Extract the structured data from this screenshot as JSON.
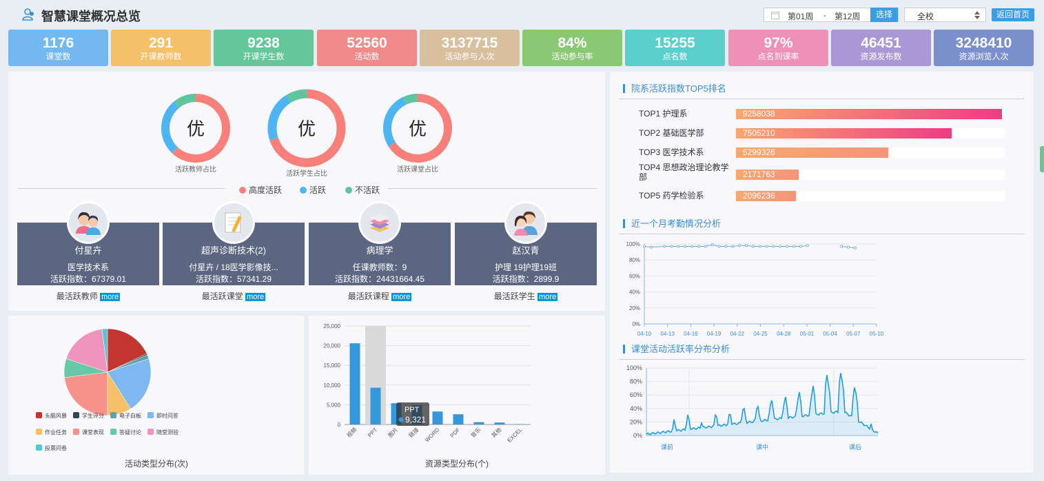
{
  "header": {
    "title": "智慧课堂概况总览",
    "week_from": "第01周",
    "week_sep": "-",
    "week_to": "第12周",
    "select_label": "选择",
    "school": "全校",
    "home_label": "返回首页"
  },
  "stats": [
    {
      "value": "1176",
      "label": "课堂数",
      "color": "#74b8f2"
    },
    {
      "value": "291",
      "label": "开课教师数",
      "color": "#f6bf69"
    },
    {
      "value": "9238",
      "label": "开课学生数",
      "color": "#63c79a"
    },
    {
      "value": "52560",
      "label": "活动数",
      "color": "#f08b8b"
    },
    {
      "value": "3137715",
      "label": "活动参与人次",
      "color": "#d8c09f"
    },
    {
      "value": "84%",
      "label": "活动参与率",
      "color": "#8bc874"
    },
    {
      "value": "15255",
      "label": "点名数",
      "color": "#5bcfcc"
    },
    {
      "value": "97%",
      "label": "点名到课率",
      "color": "#ef90b6"
    },
    {
      "value": "46451",
      "label": "资源发布数",
      "color": "#ab97d6"
    },
    {
      "value": "3248410",
      "label": "资源浏览人次",
      "color": "#7a8fcb"
    }
  ],
  "donuts": [
    {
      "center": "优",
      "label": "活跃教师占比",
      "high": 0.62,
      "active": 0.27,
      "inactive": 0.11
    },
    {
      "center": "优",
      "label": "活跃学生占比",
      "high": 0.7,
      "active": 0.21,
      "inactive": 0.09
    },
    {
      "center": "优",
      "label": "活跃课堂占比",
      "high": 0.66,
      "active": 0.27,
      "inactive": 0.07
    }
  ],
  "legend": [
    {
      "label": "高度活跃",
      "color": "#f7807a"
    },
    {
      "label": "活跃",
      "color": "#4db5f2"
    },
    {
      "label": "不活跃",
      "color": "#5fc5a1"
    }
  ],
  "cards": [
    {
      "name": "付星卉",
      "line1": "医学技术系",
      "line2": "活跃指数：67379.01",
      "caption": "最活跃教师",
      "more": "more"
    },
    {
      "name": "超声诊断技术(2)",
      "line1": "付星卉 / 18医学影像技...",
      "line2": "活跃指数：57341.29",
      "caption": "最活跃课堂",
      "more": "more"
    },
    {
      "name": "病理学",
      "line1": "任课教师数：9",
      "line2": "活跃指数：24431664.45",
      "caption": "最活跃课程",
      "more": "more"
    },
    {
      "name": "赵汉青",
      "line1": "护理 19护理19班",
      "line2": "活跃指数：2899.9",
      "caption": "最活跃学生",
      "more": "more"
    }
  ],
  "pie": {
    "caption": "活动类型分布(次)",
    "slices": [
      {
        "name": "头脑风暴",
        "value": 18,
        "color": "#c23531"
      },
      {
        "name": "学生评分",
        "value": 0.5,
        "color": "#2f4554"
      },
      {
        "name": "电子白板",
        "value": 1.5,
        "color": "#61a0a8"
      },
      {
        "name": "即时问答",
        "value": 21,
        "color": "#7db9f0"
      },
      {
        "name": "作业任务",
        "value": 9,
        "color": "#f6bf69"
      },
      {
        "name": "课堂表现",
        "value": 23,
        "color": "#f7928a"
      },
      {
        "name": "答疑讨论",
        "value": 7,
        "color": "#66c8a6"
      },
      {
        "name": "随堂测验",
        "value": 18,
        "color": "#ef94bf"
      },
      {
        "name": "投票问卷",
        "value": 2,
        "color": "#52c8cf"
      }
    ]
  },
  "chart_data": [
    {
      "type": "bar",
      "caption": "资源类型分布(个)",
      "categories": [
        "视频",
        "PPT",
        "图片",
        "链接",
        "WORD",
        "PDF",
        "音乐",
        "其他",
        "EXCEL"
      ],
      "values": [
        20600,
        9321,
        5400,
        4900,
        3300,
        2600,
        600,
        500,
        100
      ],
      "ylim": [
        0,
        25000
      ],
      "yticks": [
        "0",
        "5,000",
        "10,000",
        "15,000",
        "20,000",
        "25,000"
      ],
      "highlight": "PPT",
      "tooltip": {
        "name": "PPT",
        "value": "9,321"
      }
    },
    {
      "type": "bar",
      "title": "院系活跃指数TOP5排名",
      "categories": [
        "TOP1 护理系",
        "TOP2 基础医学部",
        "TOP3 医学技术系",
        "TOP4 思想政治理论教学部",
        "TOP5 药学检验系"
      ],
      "values": [
        9258038,
        7505210,
        5299326,
        2171763,
        2096236
      ],
      "value_labels": [
        "9258038",
        "7505210",
        "5299326",
        "2171763",
        "2096236"
      ]
    },
    {
      "type": "line",
      "title": "近一个月考勤情况分析",
      "x": [
        "04-10",
        "04-13",
        "04-16",
        "04-19",
        "04-22",
        "04-25",
        "04-28",
        "05-01",
        "05-04",
        "05-07",
        "05-10"
      ],
      "yticks": [
        "0%",
        "20%",
        "40%",
        "60%",
        "80%",
        "100%"
      ],
      "ylim": [
        0,
        100
      ],
      "segments": [
        [
          [
            0,
            97
          ],
          [
            0.3,
            96
          ],
          [
            0.9,
            97
          ],
          [
            1.2,
            97
          ],
          [
            1.5,
            97
          ],
          [
            1.8,
            97
          ],
          [
            2.1,
            97
          ],
          [
            2.4,
            97
          ],
          [
            2.7,
            97
          ],
          [
            3.0,
            99
          ],
          [
            3.3,
            97
          ],
          [
            3.6,
            97
          ],
          [
            3.9,
            97
          ],
          [
            4.2,
            98
          ],
          [
            4.5,
            98
          ],
          [
            4.8,
            97
          ],
          [
            5.1,
            97
          ],
          [
            5.4,
            97
          ],
          [
            5.7,
            97
          ],
          [
            6.0,
            97
          ],
          [
            6.3,
            97
          ],
          [
            6.6,
            97
          ],
          [
            6.9,
            97
          ],
          [
            7.2,
            98
          ]
        ],
        [
          [
            8.7,
            97
          ],
          [
            9.0,
            96
          ],
          [
            9.3,
            95
          ]
        ]
      ]
    },
    {
      "type": "area",
      "title": "课堂活动活跃率分布分析",
      "x": [
        "课前",
        "课中",
        "课后"
      ],
      "yticks": [
        "0%",
        "20%",
        "40%",
        "60%",
        "80%",
        "100%"
      ],
      "ylim": [
        0,
        100
      ]
    }
  ]
}
